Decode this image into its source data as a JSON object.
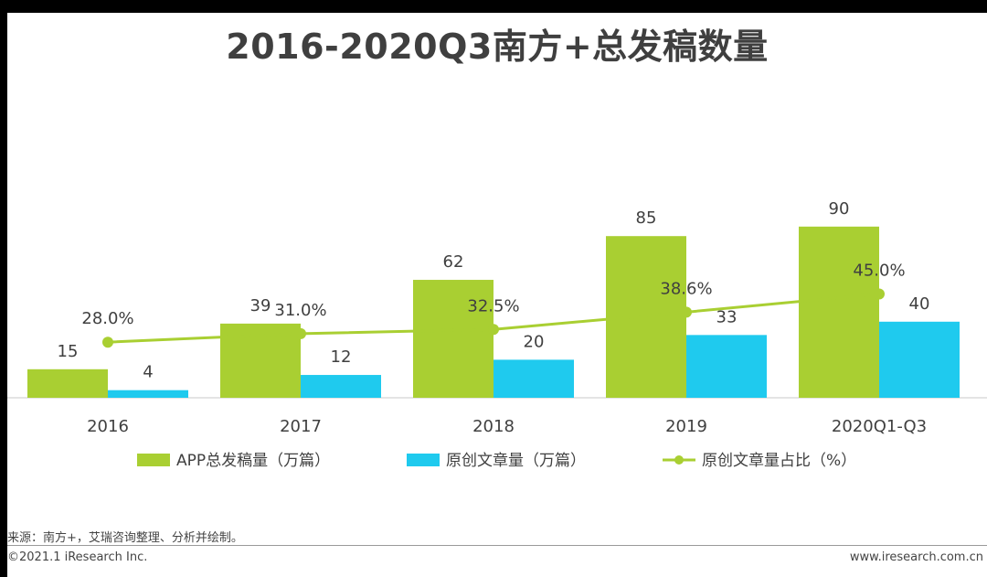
{
  "chart_data": {
    "type": "bar",
    "title": "2016-2020Q3南方+总发稿数量",
    "categories": [
      "2016",
      "2017",
      "2018",
      "2019",
      "2020Q1-Q3"
    ],
    "series": [
      {
        "name": "APP总发稿量（万篇）",
        "kind": "bar",
        "color": "#a9cf32",
        "values": [
          15,
          39,
          62,
          85,
          90
        ]
      },
      {
        "name": "原创文章量（万篇）",
        "kind": "bar",
        "color": "#1fcaee",
        "values": [
          4,
          12,
          20,
          33,
          40
        ]
      },
      {
        "name": "原创文章量占比（%）",
        "kind": "line",
        "color": "#a9cf32",
        "values": [
          28.0,
          31.0,
          32.5,
          38.6,
          45.0
        ],
        "labels": [
          "28.0%",
          "31.0%",
          "32.5%",
          "38.6%",
          "45.0%"
        ]
      }
    ],
    "bar_ylim": [
      0,
      100
    ],
    "line_ylim": [
      0,
      100
    ],
    "xlabel": "",
    "ylabel": "",
    "legend_position": "bottom"
  },
  "footer": {
    "source": "来源：南方+，艾瑞咨询整理、分析并绘制。",
    "copyright": "©2021.1 iResearch Inc.",
    "website": "www.iresearch.com.cn"
  }
}
